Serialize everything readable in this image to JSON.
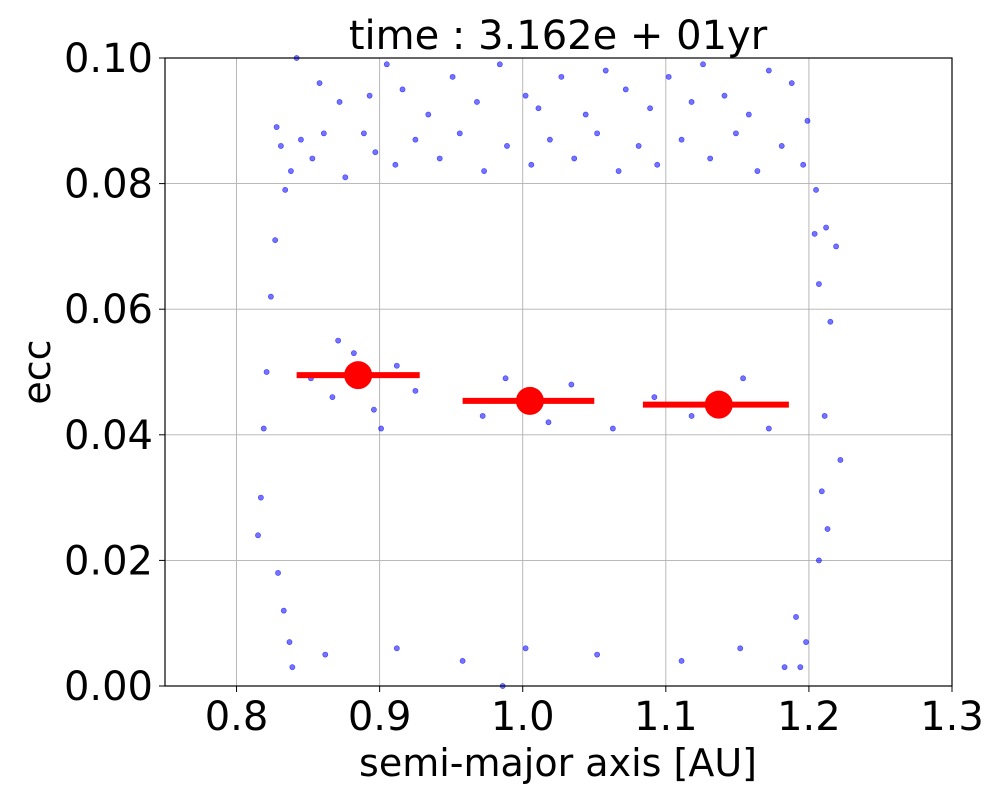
{
  "chart_data": {
    "type": "scatter",
    "title": "time : 3.162e + 01yr",
    "xlabel": "semi-major axis [AU]",
    "ylabel": "ecc",
    "xlim": [
      0.75,
      1.3
    ],
    "ylim": [
      0.0,
      0.1
    ],
    "grid": true,
    "x_ticks": [
      "0.8",
      "0.9",
      "1.0",
      "1.1",
      "1.2",
      "1.3"
    ],
    "y_ticks": [
      "0.00",
      "0.02",
      "0.04",
      "0.06",
      "0.08",
      "0.10"
    ],
    "scatter_color": "#0000ff",
    "scatter_alpha": 0.55,
    "scatter_points": [
      [
        0.842,
        0.1
      ],
      [
        0.858,
        0.096
      ],
      [
        0.872,
        0.093
      ],
      [
        0.889,
        0.088
      ],
      [
        0.893,
        0.094
      ],
      [
        0.905,
        0.099
      ],
      [
        0.916,
        0.095
      ],
      [
        0.934,
        0.091
      ],
      [
        0.951,
        0.097
      ],
      [
        0.968,
        0.093
      ],
      [
        0.984,
        0.099
      ],
      [
        1.002,
        0.094
      ],
      [
        1.011,
        0.092
      ],
      [
        1.027,
        0.097
      ],
      [
        1.044,
        0.091
      ],
      [
        1.058,
        0.098
      ],
      [
        1.072,
        0.095
      ],
      [
        1.089,
        0.092
      ],
      [
        1.102,
        0.097
      ],
      [
        1.118,
        0.093
      ],
      [
        1.126,
        0.099
      ],
      [
        1.141,
        0.094
      ],
      [
        1.158,
        0.091
      ],
      [
        1.172,
        0.098
      ],
      [
        1.188,
        0.096
      ],
      [
        1.199,
        0.09
      ],
      [
        0.828,
        0.089
      ],
      [
        0.831,
        0.086
      ],
      [
        0.838,
        0.082
      ],
      [
        0.845,
        0.087
      ],
      [
        0.853,
        0.084
      ],
      [
        0.861,
        0.088
      ],
      [
        0.876,
        0.081
      ],
      [
        0.897,
        0.085
      ],
      [
        0.911,
        0.083
      ],
      [
        0.925,
        0.087
      ],
      [
        0.942,
        0.084
      ],
      [
        0.956,
        0.088
      ],
      [
        0.973,
        0.082
      ],
      [
        0.989,
        0.086
      ],
      [
        1.006,
        0.083
      ],
      [
        1.019,
        0.087
      ],
      [
        1.036,
        0.084
      ],
      [
        1.052,
        0.088
      ],
      [
        1.067,
        0.082
      ],
      [
        1.081,
        0.086
      ],
      [
        1.094,
        0.083
      ],
      [
        1.111,
        0.087
      ],
      [
        1.131,
        0.084
      ],
      [
        1.149,
        0.088
      ],
      [
        1.164,
        0.082
      ],
      [
        1.181,
        0.086
      ],
      [
        1.196,
        0.083
      ],
      [
        1.205,
        0.079
      ],
      [
        0.834,
        0.079
      ],
      [
        0.827,
        0.071
      ],
      [
        1.204,
        0.072
      ],
      [
        1.212,
        0.073
      ],
      [
        1.219,
        0.07
      ],
      [
        0.824,
        0.062
      ],
      [
        0.821,
        0.05
      ],
      [
        1.207,
        0.064
      ],
      [
        1.215,
        0.058
      ],
      [
        0.819,
        0.041
      ],
      [
        1.211,
        0.043
      ],
      [
        1.222,
        0.036
      ],
      [
        0.817,
        0.03
      ],
      [
        0.815,
        0.024
      ],
      [
        1.209,
        0.031
      ],
      [
        1.213,
        0.025
      ],
      [
        1.207,
        0.02
      ],
      [
        0.829,
        0.018
      ],
      [
        0.833,
        0.012
      ],
      [
        0.837,
        0.007
      ],
      [
        0.839,
        0.003
      ],
      [
        1.191,
        0.011
      ],
      [
        1.198,
        0.007
      ],
      [
        1.194,
        0.003
      ],
      [
        1.183,
        0.003
      ],
      [
        0.986,
        0.0
      ],
      [
        0.958,
        0.004
      ],
      [
        1.002,
        0.006
      ],
      [
        1.052,
        0.005
      ],
      [
        1.111,
        0.004
      ],
      [
        1.152,
        0.006
      ],
      [
        0.862,
        0.005
      ],
      [
        0.912,
        0.006
      ],
      [
        0.852,
        0.049
      ],
      [
        0.867,
        0.046
      ],
      [
        0.882,
        0.053
      ],
      [
        0.896,
        0.044
      ],
      [
        0.912,
        0.051
      ],
      [
        0.871,
        0.055
      ],
      [
        0.901,
        0.041
      ],
      [
        0.925,
        0.047
      ],
      [
        0.972,
        0.043
      ],
      [
        0.988,
        0.049
      ],
      [
        1.018,
        0.042
      ],
      [
        1.034,
        0.048
      ],
      [
        1.063,
        0.041
      ],
      [
        1.092,
        0.046
      ],
      [
        1.118,
        0.043
      ],
      [
        1.154,
        0.049
      ],
      [
        1.172,
        0.041
      ]
    ],
    "series": [
      {
        "x": [
          0.885,
          1.005,
          1.137
        ],
        "y": [
          0.0495,
          0.0454,
          0.0448
        ],
        "x_error_low": [
          0.842,
          0.958,
          1.084
        ],
        "x_error_high": [
          0.928,
          1.05,
          1.186
        ],
        "color": "#ff0000"
      }
    ]
  }
}
